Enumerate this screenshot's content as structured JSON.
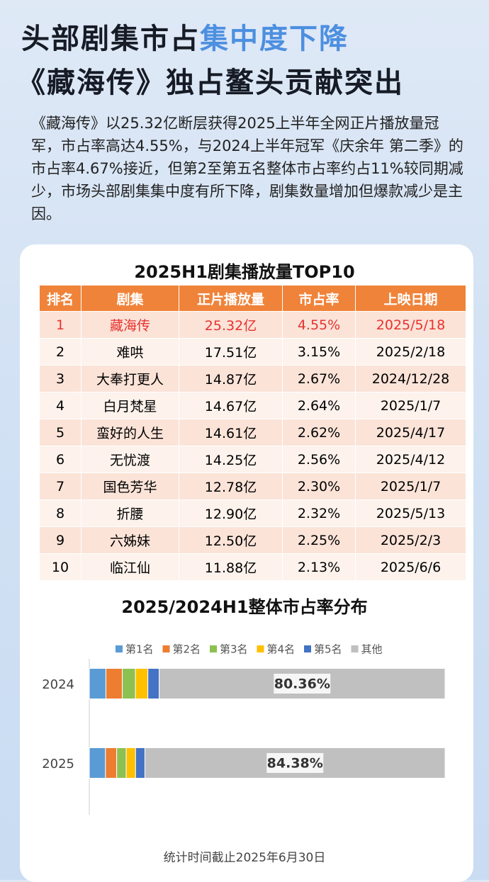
{
  "headline": {
    "line1_dark": "头部剧集市占",
    "line1_blue": "集中度下降",
    "line2": "《藏海传》独占鳌头贡献突出"
  },
  "paragraph": "《藏海传》以25.32亿断层获得2025上半年全网正片播放量冠军，市占率高达4.55%，与2024上半年冠军《庆余年  第二季》的市占率4.67%接近，但第2至第五名整体市占率约占11%较同期减少，市场头部剧集集中度有所下降，剧集数量增加但爆款减少是主因。",
  "table": {
    "title": "2025H1剧集播放量TOP10",
    "header": [
      "排名",
      "剧集",
      "正片播放量",
      "市占率",
      "上映日期"
    ],
    "rows": [
      [
        "1",
        "藏海传",
        "25.32亿",
        "4.55%",
        "2025/5/18"
      ],
      [
        "2",
        "难哄",
        "17.51亿",
        "3.15%",
        "2025/2/18"
      ],
      [
        "3",
        "大奉打更人",
        "14.87亿",
        "2.67%",
        "2024/12/28"
      ],
      [
        "4",
        "白月梵星",
        "14.67亿",
        "2.64%",
        "2025/1/7"
      ],
      [
        "5",
        "蛮好的人生",
        "14.61亿",
        "2.62%",
        "2025/4/17"
      ],
      [
        "6",
        "无忧渡",
        "14.25亿",
        "2.56%",
        "2025/4/12"
      ],
      [
        "7",
        "国色芳华",
        "12.78亿",
        "2.30%",
        "2025/1/7"
      ],
      [
        "8",
        "折腰",
        "12.90亿",
        "2.32%",
        "2025/5/13"
      ],
      [
        "9",
        "六姊妹",
        "12.50亿",
        "2.25%",
        "2025/2/3"
      ],
      [
        "10",
        "临江仙",
        "11.88亿",
        "2.13%",
        "2025/6/6"
      ]
    ]
  },
  "chart_data": {
    "type": "stacked_barh",
    "title": "2025/2024H1整体市占率分布",
    "categories": [
      "2024",
      "2025"
    ],
    "xlim": [
      0,
      100
    ],
    "legend": "top",
    "series": [
      {
        "name": "第1名",
        "color": "#5b9bd5",
        "values": [
          4.67,
          4.55
        ]
      },
      {
        "name": "第2名",
        "color": "#ed7d31",
        "values": [
          4.6,
          3.15
        ]
      },
      {
        "name": "第3名",
        "color": "#8cc152",
        "values": [
          3.7,
          2.67
        ]
      },
      {
        "name": "第4名",
        "color": "#ffc000",
        "values": [
          3.5,
          2.64
        ]
      },
      {
        "name": "第5名",
        "color": "#4472c4",
        "values": [
          3.17,
          2.62
        ]
      },
      {
        "name": "其他",
        "color": "#c0c0c0",
        "values": [
          80.36,
          84.38
        ],
        "value_labels": [
          "80.36%",
          "84.38%"
        ]
      }
    ]
  },
  "footnote": "统计时间截止2025年6月30日"
}
